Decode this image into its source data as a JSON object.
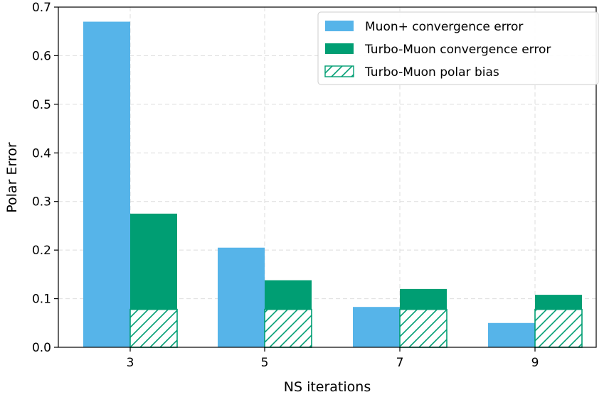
{
  "chart_data": {
    "type": "bar",
    "title": "",
    "xlabel": "NS iterations",
    "ylabel": "Polar Error",
    "categories": [
      "3",
      "5",
      "7",
      "9"
    ],
    "ylim": [
      0,
      0.7
    ],
    "yticks": [
      "0.0",
      "0.1",
      "0.2",
      "0.3",
      "0.4",
      "0.5",
      "0.6",
      "0.7"
    ],
    "grid": true,
    "legend_position": "top-right",
    "series": [
      {
        "name": "Muon+ convergence error",
        "values": [
          0.67,
          0.205,
          0.083,
          0.05
        ],
        "color": "#56B4E9"
      },
      {
        "name": "Turbo-Muon convergence error",
        "values": [
          0.275,
          0.138,
          0.12,
          0.108
        ],
        "color": "#009E73"
      },
      {
        "name": "Turbo-Muon polar bias",
        "values": [
          0.078,
          0.078,
          0.078,
          0.078
        ],
        "color": "#009E73",
        "pattern": "hatch"
      }
    ]
  }
}
